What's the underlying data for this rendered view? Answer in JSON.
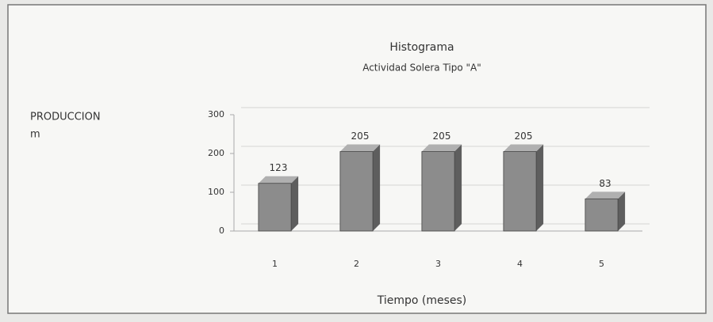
{
  "chart_data": {
    "type": "bar",
    "title": "Histograma",
    "subtitle": "Actividad Solera Tipo \"A\"",
    "ylabel": [
      "PRODUCCION",
      "m"
    ],
    "xlabel": "Tiempo (meses)",
    "categories": [
      "1",
      "2",
      "3",
      "4",
      "5"
    ],
    "values": [
      123,
      205,
      205,
      205,
      83
    ],
    "color": "#8c8c8c",
    "ylim": [
      0,
      300
    ],
    "yticks": [
      0,
      100,
      200,
      300
    ],
    "grid": true
  }
}
